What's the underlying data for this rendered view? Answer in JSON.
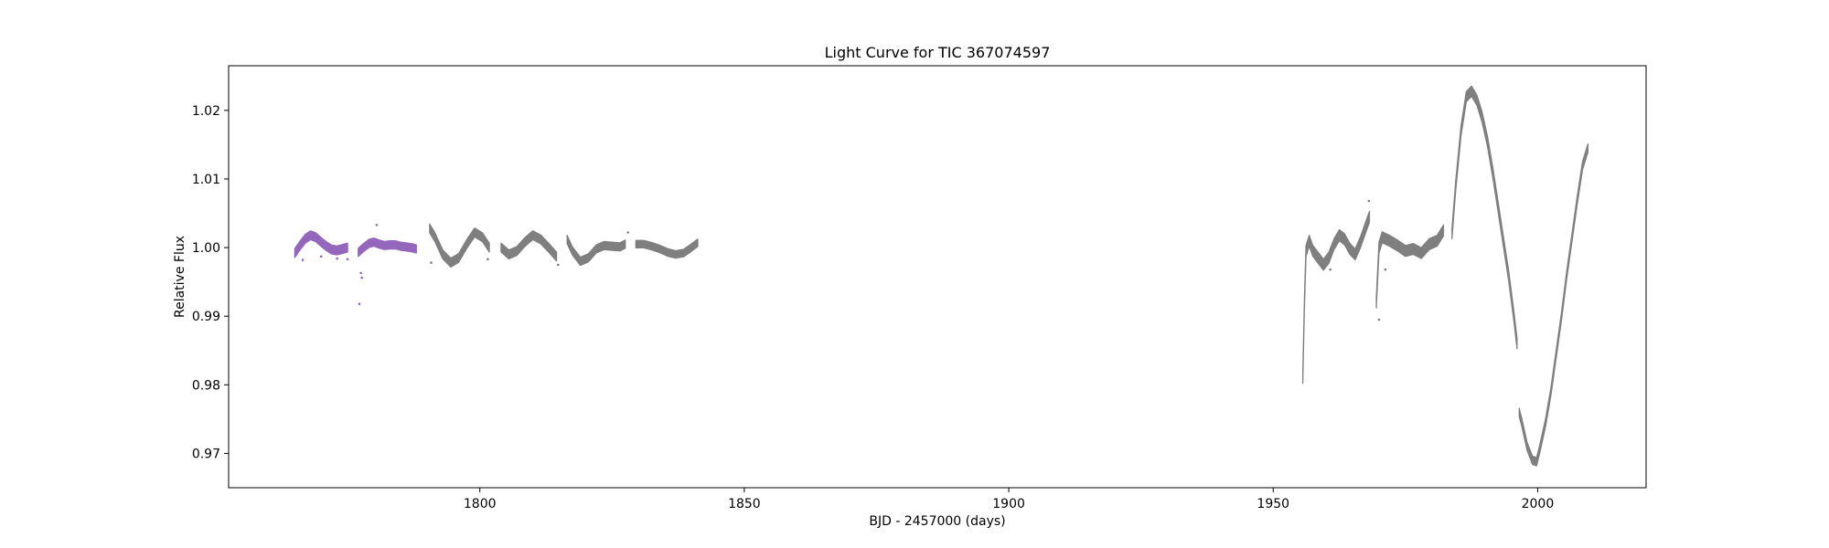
{
  "chart_data": {
    "type": "scatter",
    "title": "Light Curve for TIC 367074597",
    "xlabel": "BJD - 2457000 (days)",
    "ylabel": "Relative Flux",
    "xlim": [
      1752.5,
      2020.5
    ],
    "ylim": [
      0.965,
      1.0265
    ],
    "xticks": [
      1800,
      1850,
      1900,
      1950,
      2000
    ],
    "yticks": [
      0.97,
      0.98,
      0.99,
      1.0,
      1.01,
      1.02
    ],
    "xtick_labels": [
      "1800",
      "1850",
      "1900",
      "1950",
      "2000"
    ],
    "ytick_labels": [
      "0.97",
      "0.98",
      "0.99",
      "1.00",
      "1.01",
      "1.02"
    ],
    "grid": false,
    "legend": "none",
    "series": [
      {
        "color": "#9467bd",
        "bands": [
          {
            "x": [
              1765.0,
              1766.0,
              1767.0,
              1768.0,
              1769.0,
              1770.0,
              1771.0,
              1772.0,
              1773.0,
              1774.0,
              1775.0
            ],
            "y": [
              0.9992,
              1.0003,
              1.0013,
              1.0018,
              1.0015,
              1.0008,
              1.0002,
              0.9997,
              0.9996,
              0.9998,
              1.0
            ],
            "spread": 0.0013
          },
          {
            "x": [
              1777.0,
              1778.0,
              1779.0,
              1780.0,
              1781.0,
              1782.0,
              1783.0,
              1784.0,
              1785.0,
              1786.0,
              1787.0,
              1788.0
            ],
            "y": [
              0.9993,
              1.0,
              1.0006,
              1.0008,
              1.0005,
              1.0003,
              1.0004,
              1.0004,
              1.0002,
              1.0001,
              1.0,
              0.9998
            ],
            "spread": 0.0012
          }
        ],
        "points": [
          {
            "x": 1766.5,
            "y": 0.9982
          },
          {
            "x": 1770.0,
            "y": 0.9987
          },
          {
            "x": 1773.0,
            "y": 0.9984
          },
          {
            "x": 1777.5,
            "y": 0.9963
          },
          {
            "x": 1777.7,
            "y": 0.9956
          },
          {
            "x": 1777.2,
            "y": 0.9918
          },
          {
            "x": 1780.5,
            "y": 1.0033
          },
          {
            "x": 1775.0,
            "y": 0.9983
          }
        ]
      },
      {
        "color": "#7f7f7f",
        "bands": [
          {
            "x": [
              1790.5,
              1791.5,
              1793.0,
              1794.5,
              1796.0,
              1797.5,
              1799.0,
              1800.5,
              1801.8
            ],
            "y": [
              1.0028,
              1.0015,
              0.999,
              0.9978,
              0.9985,
              1.0005,
              1.0022,
              1.0015,
              1.0
            ],
            "spread": 0.0013
          },
          {
            "x": [
              1804.0,
              1805.5,
              1807.0,
              1808.5,
              1810.0,
              1811.5,
              1813.0,
              1814.5
            ],
            "y": [
              1.0,
              0.999,
              0.9995,
              1.0008,
              1.0018,
              1.0012,
              1.0,
              0.9987
            ],
            "spread": 0.0013
          },
          {
            "x": [
              1816.5,
              1817.5,
              1819.0,
              1820.5,
              1822.0,
              1823.5,
              1825.0,
              1826.5,
              1827.5
            ],
            "y": [
              1.0012,
              0.9995,
              0.998,
              0.9985,
              0.9998,
              1.0003,
              1.0002,
              1.0001,
              1.0005
            ],
            "spread": 0.0012
          },
          {
            "x": [
              1829.5,
              1831.0,
              1832.5,
              1834.0,
              1835.5,
              1837.0,
              1838.5,
              1840.0,
              1841.2
            ],
            "y": [
              1.0005,
              1.0005,
              1.0002,
              0.9998,
              0.9993,
              0.999,
              0.9992,
              1.0,
              1.0007
            ],
            "spread": 0.0011
          },
          {
            "x": [
              1955.6,
              1955.9,
              1956.2,
              1956.8,
              1957.5,
              1958.5,
              1959.5,
              1960.5,
              1961.5,
              1962.5,
              1963.5,
              1964.5,
              1965.5,
              1966.5,
              1967.5,
              1968.2
            ],
            "y": [
              0.981,
              0.992,
              0.9995,
              1.001,
              0.9995,
              0.9985,
              0.9975,
              0.9985,
              1.0005,
              1.0018,
              1.0012,
              0.9998,
              0.999,
              1.0008,
              1.003,
              1.0045
            ],
            "spread": 0.0016
          },
          {
            "x": [
              1969.5,
              1970.0,
              1970.6,
              1972.0,
              1973.5,
              1975.0,
              1976.5,
              1978.0,
              1979.5,
              1981.0,
              1982.2
            ],
            "y": [
              0.992,
              1.0,
              1.0015,
              1.001,
              1.0003,
              0.9995,
              0.9998,
              0.9992,
              1.0005,
              1.001,
              1.0025
            ],
            "spread": 0.0016
          },
          {
            "x": [
              1983.8,
              1984.5,
              1985.5,
              1986.5,
              1987.5,
              1988.5,
              1989.5,
              1990.5,
              1991.5,
              1992.5,
              1993.5,
              1994.5,
              1995.5,
              1996.1
            ],
            "y": [
              1.002,
              1.009,
              1.017,
              1.022,
              1.0228,
              1.0215,
              1.019,
              1.0155,
              1.011,
              1.006,
              1.001,
              0.996,
              0.99,
              0.986
            ],
            "spread": 0.0015
          },
          {
            "x": [
              1996.5,
              1997.0,
              1998.0,
              1999.0,
              1999.8,
              2000.5,
              2001.5,
              2002.5,
              2003.5,
              2004.5,
              2005.5,
              2006.5,
              2007.5,
              2008.5,
              2009.5
            ],
            "y": [
              0.976,
              0.9745,
              0.971,
              0.969,
              0.9688,
              0.971,
              0.9745,
              0.979,
              0.9845,
              0.99,
              0.996,
              1.0015,
              1.007,
              1.012,
              1.0145
            ],
            "spread": 0.0012
          }
        ],
        "points": [
          {
            "x": 1790.8,
            "y": 0.9978
          },
          {
            "x": 1801.5,
            "y": 0.9983
          },
          {
            "x": 1814.8,
            "y": 0.9975
          },
          {
            "x": 1828.0,
            "y": 1.0022
          },
          {
            "x": 1960.8,
            "y": 0.9968
          },
          {
            "x": 1970.0,
            "y": 0.9895
          },
          {
            "x": 1971.2,
            "y": 0.9968
          },
          {
            "x": 1968.1,
            "y": 1.0068
          }
        ]
      }
    ]
  }
}
